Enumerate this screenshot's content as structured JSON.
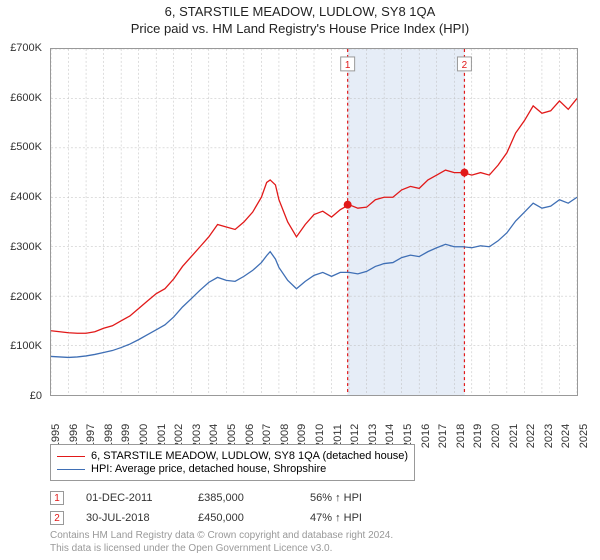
{
  "titles": {
    "line1": "6, STARSTILE MEADOW, LUDLOW, SY8 1QA",
    "line2": "Price paid vs. HM Land Registry's House Price Index (HPI)"
  },
  "chart": {
    "type": "line",
    "background_color": "#ffffff",
    "grid_color": "#bbbbbb",
    "axis_color": "#999999",
    "y": {
      "min": 0,
      "max": 700000,
      "step": 100000,
      "labels": [
        "£0",
        "£100K",
        "£200K",
        "£300K",
        "£400K",
        "£500K",
        "£600K",
        "£700K"
      ]
    },
    "x": {
      "years": [
        1995,
        1996,
        1997,
        1998,
        1999,
        2000,
        2001,
        2002,
        2003,
        2004,
        2005,
        2006,
        2007,
        2008,
        2009,
        2010,
        2011,
        2012,
        2013,
        2014,
        2015,
        2016,
        2017,
        2018,
        2019,
        2020,
        2021,
        2022,
        2023,
        2024,
        2025
      ]
    },
    "band": {
      "start_year": 2011.9,
      "end_year": 2018.6,
      "fill": "#e6edf7"
    },
    "markers": [
      {
        "idx": "1",
        "year": 2011.92,
        "price": 385000,
        "color": "#e11919"
      },
      {
        "idx": "2",
        "year": 2018.58,
        "price": 450000,
        "color": "#e11919"
      }
    ],
    "series": [
      {
        "name": "price_paid",
        "color": "#e11919",
        "points": [
          [
            1995,
            130000
          ],
          [
            1995.5,
            128000
          ],
          [
            1996,
            126000
          ],
          [
            1996.5,
            125000
          ],
          [
            1997,
            125000
          ],
          [
            1997.5,
            128000
          ],
          [
            1998,
            135000
          ],
          [
            1998.5,
            140000
          ],
          [
            1999,
            150000
          ],
          [
            1999.5,
            160000
          ],
          [
            2000,
            175000
          ],
          [
            2000.5,
            190000
          ],
          [
            2001,
            205000
          ],
          [
            2001.5,
            215000
          ],
          [
            2002,
            235000
          ],
          [
            2002.5,
            260000
          ],
          [
            2003,
            280000
          ],
          [
            2003.5,
            300000
          ],
          [
            2004,
            320000
          ],
          [
            2004.5,
            345000
          ],
          [
            2005,
            340000
          ],
          [
            2005.5,
            335000
          ],
          [
            2006,
            350000
          ],
          [
            2006.5,
            370000
          ],
          [
            2007,
            400000
          ],
          [
            2007.3,
            430000
          ],
          [
            2007.5,
            435000
          ],
          [
            2007.8,
            425000
          ],
          [
            2008,
            395000
          ],
          [
            2008.5,
            350000
          ],
          [
            2009,
            320000
          ],
          [
            2009.5,
            345000
          ],
          [
            2010,
            365000
          ],
          [
            2010.5,
            372000
          ],
          [
            2011,
            360000
          ],
          [
            2011.5,
            375000
          ],
          [
            2012,
            385000
          ],
          [
            2012.5,
            378000
          ],
          [
            2013,
            380000
          ],
          [
            2013.5,
            395000
          ],
          [
            2014,
            400000
          ],
          [
            2014.5,
            400000
          ],
          [
            2015,
            415000
          ],
          [
            2015.5,
            422000
          ],
          [
            2016,
            418000
          ],
          [
            2016.5,
            435000
          ],
          [
            2017,
            445000
          ],
          [
            2017.5,
            455000
          ],
          [
            2018,
            450000
          ],
          [
            2018.5,
            450000
          ],
          [
            2019,
            445000
          ],
          [
            2019.5,
            450000
          ],
          [
            2020,
            445000
          ],
          [
            2020.5,
            465000
          ],
          [
            2021,
            490000
          ],
          [
            2021.5,
            530000
          ],
          [
            2022,
            555000
          ],
          [
            2022.5,
            585000
          ],
          [
            2023,
            570000
          ],
          [
            2023.5,
            575000
          ],
          [
            2024,
            595000
          ],
          [
            2024.5,
            578000
          ],
          [
            2025,
            600000
          ]
        ]
      },
      {
        "name": "hpi",
        "color": "#3f6fb5",
        "points": [
          [
            1995,
            78000
          ],
          [
            1995.5,
            77000
          ],
          [
            1996,
            76000
          ],
          [
            1996.5,
            77000
          ],
          [
            1997,
            79000
          ],
          [
            1997.5,
            82000
          ],
          [
            1998,
            86000
          ],
          [
            1998.5,
            90000
          ],
          [
            1999,
            96000
          ],
          [
            1999.5,
            103000
          ],
          [
            2000,
            112000
          ],
          [
            2000.5,
            122000
          ],
          [
            2001,
            132000
          ],
          [
            2001.5,
            142000
          ],
          [
            2002,
            158000
          ],
          [
            2002.5,
            178000
          ],
          [
            2003,
            195000
          ],
          [
            2003.5,
            212000
          ],
          [
            2004,
            228000
          ],
          [
            2004.5,
            238000
          ],
          [
            2005,
            232000
          ],
          [
            2005.5,
            230000
          ],
          [
            2006,
            240000
          ],
          [
            2006.5,
            252000
          ],
          [
            2007,
            268000
          ],
          [
            2007.3,
            282000
          ],
          [
            2007.5,
            290000
          ],
          [
            2007.8,
            275000
          ],
          [
            2008,
            258000
          ],
          [
            2008.5,
            232000
          ],
          [
            2009,
            215000
          ],
          [
            2009.5,
            230000
          ],
          [
            2010,
            242000
          ],
          [
            2010.5,
            248000
          ],
          [
            2011,
            240000
          ],
          [
            2011.5,
            248000
          ],
          [
            2012,
            248000
          ],
          [
            2012.5,
            245000
          ],
          [
            2013,
            250000
          ],
          [
            2013.5,
            260000
          ],
          [
            2014,
            266000
          ],
          [
            2014.5,
            268000
          ],
          [
            2015,
            278000
          ],
          [
            2015.5,
            283000
          ],
          [
            2016,
            280000
          ],
          [
            2016.5,
            290000
          ],
          [
            2017,
            298000
          ],
          [
            2017.5,
            305000
          ],
          [
            2018,
            300000
          ],
          [
            2018.5,
            300000
          ],
          [
            2019,
            298000
          ],
          [
            2019.5,
            302000
          ],
          [
            2020,
            300000
          ],
          [
            2020.5,
            312000
          ],
          [
            2021,
            328000
          ],
          [
            2021.5,
            352000
          ],
          [
            2022,
            370000
          ],
          [
            2022.5,
            388000
          ],
          [
            2023,
            378000
          ],
          [
            2023.5,
            382000
          ],
          [
            2024,
            395000
          ],
          [
            2024.5,
            388000
          ],
          [
            2025,
            400000
          ]
        ]
      }
    ]
  },
  "legend": {
    "items": [
      {
        "color": "#e11919",
        "label": "6, STARSTILE MEADOW, LUDLOW, SY8 1QA (detached house)"
      },
      {
        "color": "#3f6fb5",
        "label": "HPI: Average price, detached house, Shropshire"
      }
    ]
  },
  "marker_rows": [
    {
      "idx": "1",
      "color": "#e11919",
      "date": "01-DEC-2011",
      "price": "£385,000",
      "pct": "56% ↑ HPI"
    },
    {
      "idx": "2",
      "color": "#e11919",
      "date": "30-JUL-2018",
      "price": "£450,000",
      "pct": "47% ↑ HPI"
    }
  ],
  "footer": {
    "line1": "Contains HM Land Registry data © Crown copyright and database right 2024.",
    "line2": "This data is licensed under the Open Government Licence v3.0."
  }
}
